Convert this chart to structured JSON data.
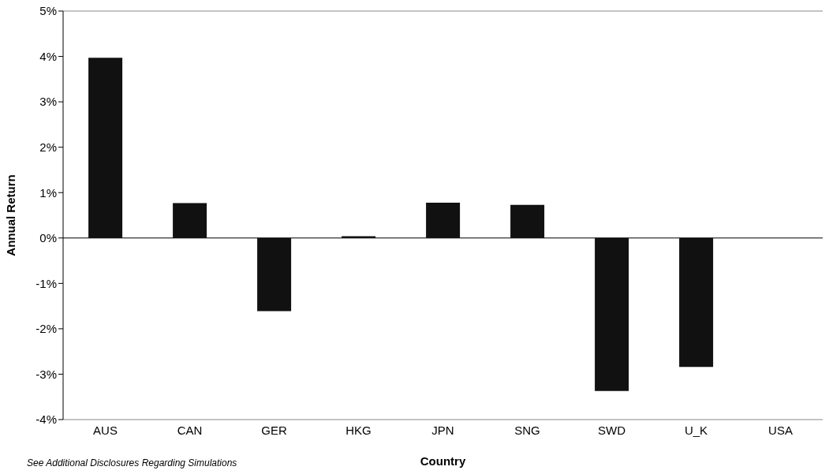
{
  "chart_data": {
    "type": "bar",
    "xlabel": "Country",
    "ylabel": "Annual Return",
    "categories": [
      "AUS",
      "CAN",
      "GER",
      "HKG",
      "JPN",
      "SNG",
      "SWD",
      "U_K",
      "USA"
    ],
    "values": [
      3.97,
      0.77,
      -1.61,
      0.04,
      0.78,
      0.73,
      -3.37,
      -2.84,
      0
    ],
    "color": "#111111",
    "ylim": [
      -4,
      5
    ],
    "yticks": [
      {
        "value": -4,
        "label": "-4%"
      },
      {
        "value": -3,
        "label": "-3%"
      },
      {
        "value": -2,
        "label": "-2%"
      },
      {
        "value": -1,
        "label": "-1%"
      },
      {
        "value": 0,
        "label": "0%"
      },
      {
        "value": 1,
        "label": "1%"
      },
      {
        "value": 2,
        "label": "2%"
      },
      {
        "value": 3,
        "label": "3%"
      },
      {
        "value": 4,
        "label": "4%"
      },
      {
        "value": 5,
        "label": "5%"
      }
    ],
    "annotations": [
      "See Additional Disclosures Regarding Simulations"
    ]
  }
}
